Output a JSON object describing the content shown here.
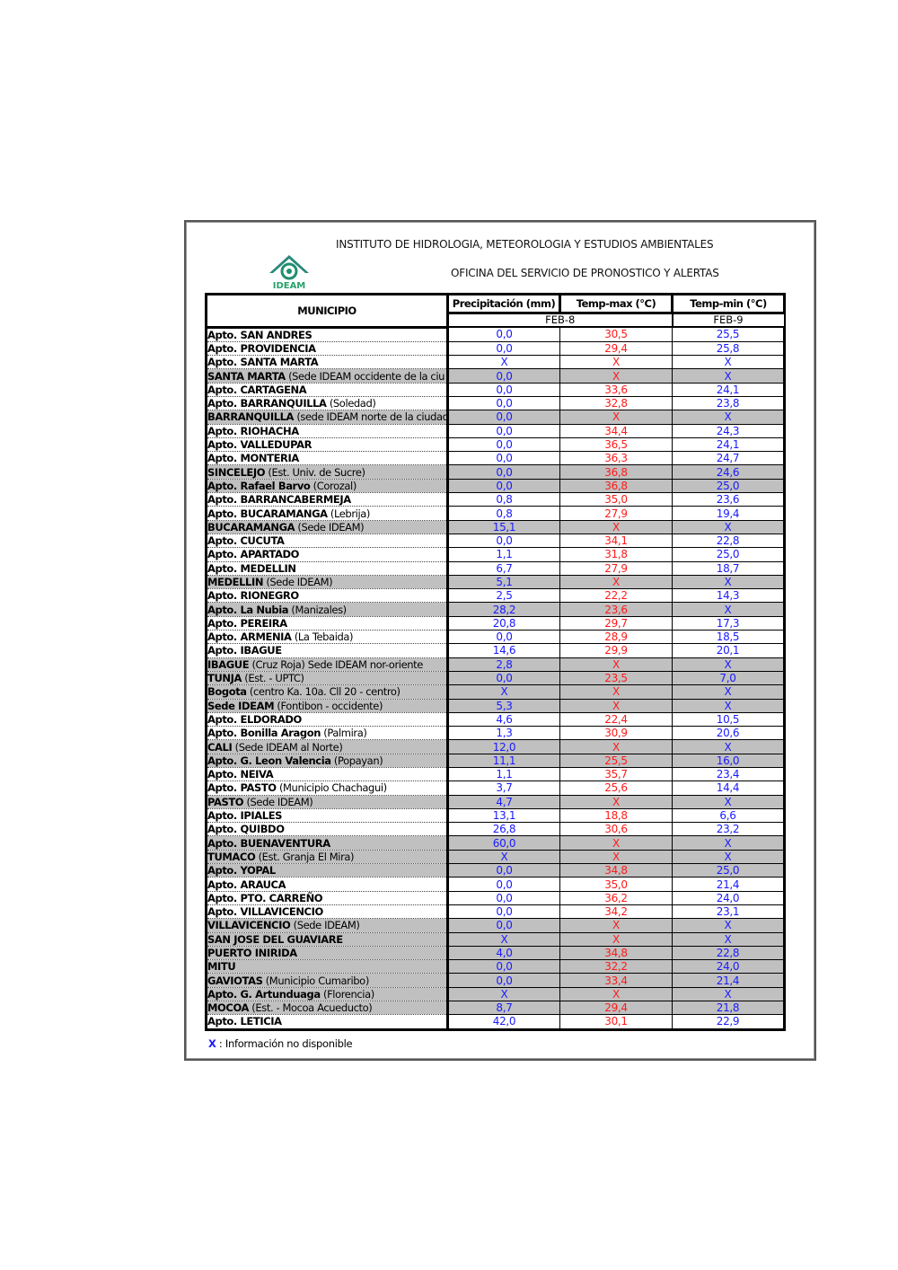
{
  "header": {
    "institute": "INSTITUTO DE HIDROLOGIA, METEOROLOGIA Y ESTUDIOS AMBIENTALES",
    "office": "OFICINA DEL SERVICIO DE PRONOSTICO Y ALERTAS",
    "logo_text": "IDEAM"
  },
  "table": {
    "col_municipio": "MUNICIPIO",
    "col_precip": "Precipitación (mm)",
    "col_tmax": "Temp-max (°C)",
    "col_tmin": "Temp-min (°C)",
    "date_precip_tmax": "FEB-8",
    "date_tmin": "FEB-9",
    "colors": {
      "precip": "#1a1aff",
      "tmax": "#ff1a1a",
      "tmin": "#1a1aff",
      "shaded": "#c0c0c0"
    },
    "rows": [
      {
        "b": "Apto. SAN ANDRES",
        "r": "",
        "p": "0,0",
        "x": "30,5",
        "n": "25,5",
        "g": false
      },
      {
        "b": "Apto. PROVIDENCIA",
        "r": "",
        "p": "0,0",
        "x": "29,4",
        "n": "25,8",
        "g": false
      },
      {
        "b": "Apto. SANTA MARTA",
        "r": "",
        "p": "X",
        "x": "X",
        "n": "X",
        "g": false
      },
      {
        "b": "SANTA MARTA",
        "r": " (Sede IDEAM occidente de la ciu",
        "p": "0,0",
        "x": "X",
        "n": "X",
        "g": true
      },
      {
        "b": "Apto. CARTAGENA",
        "r": "",
        "p": "0,0",
        "x": "33,6",
        "n": "24,1",
        "g": false
      },
      {
        "b": "Apto. BARRANQUILLA",
        "r": " (Soledad)",
        "p": "0,0",
        "x": "32,8",
        "n": "23,8",
        "g": false
      },
      {
        "b": "BARRANQUILLA",
        "r": " (sede IDEAM norte de la ciudad",
        "p": "0,0",
        "x": "X",
        "n": "X",
        "g": true
      },
      {
        "b": "Apto. RIOHACHA",
        "r": "",
        "p": "0,0",
        "x": "34,4",
        "n": "24,3",
        "g": false
      },
      {
        "b": "Apto. VALLEDUPAR",
        "r": "",
        "p": "0,0",
        "x": "36,5",
        "n": "24,1",
        "g": false
      },
      {
        "b": "Apto. MONTERIA",
        "r": "",
        "p": "0,0",
        "x": "36,3",
        "n": "24,7",
        "g": false
      },
      {
        "b": "SINCELEJO",
        "r": " (Est. Univ. de Sucre)",
        "p": "0,0",
        "x": "36,8",
        "n": "24,6",
        "g": true
      },
      {
        "b": "Apto. Rafael Barvo",
        "r": " (Corozal)",
        "p": "0,0",
        "x": "36,8",
        "n": "25,0",
        "g": true
      },
      {
        "b": "Apto. BARRANCABERMEJA",
        "r": "",
        "p": "0,8",
        "x": "35,0",
        "n": "23,6",
        "g": false
      },
      {
        "b": "Apto. BUCARAMANGA",
        "r": " (Lebrija)",
        "p": "0,8",
        "x": "27,9",
        "n": "19,4",
        "g": false
      },
      {
        "b": "BUCARAMANGA",
        "r": " (Sede IDEAM)",
        "p": "15,1",
        "x": "X",
        "n": "X",
        "g": true
      },
      {
        "b": "Apto. CUCUTA",
        "r": "",
        "p": "0,0",
        "x": "34,1",
        "n": "22,8",
        "g": false
      },
      {
        "b": "Apto. APARTADO",
        "r": "",
        "p": "1,1",
        "x": "31,8",
        "n": "25,0",
        "g": false
      },
      {
        "b": "Apto. MEDELLIN",
        "r": "",
        "p": "6,7",
        "x": "27,9",
        "n": "18,7",
        "g": false
      },
      {
        "b": "MEDELLIN",
        "r": " (Sede IDEAM)",
        "p": "5,1",
        "x": "X",
        "n": "X",
        "g": true
      },
      {
        "b": "Apto. RIONEGRO",
        "r": "",
        "p": "2,5",
        "x": "22,2",
        "n": "14,3",
        "g": false
      },
      {
        "b": "Apto. La Nubia",
        "r": " (Manizales)",
        "p": "28,2",
        "x": "23,6",
        "n": "X",
        "g": true
      },
      {
        "b": "Apto. PEREIRA",
        "r": "",
        "p": "20,8",
        "x": "29,7",
        "n": "17,3",
        "g": false
      },
      {
        "b": "Apto. ARMENIA",
        "r": " (La Tebaida)",
        "p": "0,0",
        "x": "28,9",
        "n": "18,5",
        "g": false
      },
      {
        "b": "Apto. IBAGUE",
        "r": "",
        "p": "14,6",
        "x": "29,9",
        "n": "20,1",
        "g": false
      },
      {
        "b": "IBAGUE",
        "r": " (Cruz Roja) Sede IDEAM  nor-oriente",
        "p": "2,8",
        "x": "X",
        "n": "X",
        "g": true
      },
      {
        "b": "TUNJA",
        "r": " (Est. - UPTC)",
        "p": "0,0",
        "x": "23,5",
        "n": "7,0",
        "g": true
      },
      {
        "b": "Bogota",
        "r": " (centro Ka. 10a. Cll 20 - centro)",
        "p": "X",
        "x": "X",
        "n": "X",
        "g": true
      },
      {
        "b": "Sede IDEAM",
        "r": " (Fontibon - occidente)",
        "p": "5,3",
        "x": "X",
        "n": "X",
        "g": true
      },
      {
        "b": "Apto. ELDORADO",
        "r": "",
        "p": "4,6",
        "x": "22,4",
        "n": "10,5",
        "g": false
      },
      {
        "b": "Apto. Bonilla Aragon",
        "r": " (Palmira)",
        "p": "1,3",
        "x": "30,9",
        "n": "20,6",
        "g": false
      },
      {
        "b": "CALI",
        "r": " (Sede IDEAM al Norte)",
        "p": "12,0",
        "x": "X",
        "n": "X",
        "g": true
      },
      {
        "b": "Apto. G. Leon Valencia",
        "r": " (Popayan)",
        "p": "11,1",
        "x": "25,5",
        "n": "16,0",
        "g": true
      },
      {
        "b": "Apto. NEIVA",
        "r": "",
        "p": "1,1",
        "x": "35,7",
        "n": "23,4",
        "g": false
      },
      {
        "b": "Apto. PASTO",
        "r": " (Municipio Chachagui)",
        "p": "3,7",
        "x": "25,6",
        "n": "14,4",
        "g": false
      },
      {
        "b": "PASTO",
        "r": " (Sede IDEAM)",
        "p": "4,7",
        "x": "X",
        "n": "X",
        "g": true
      },
      {
        "b": "Apto. IPIALES",
        "r": "",
        "p": "13,1",
        "x": "18,8",
        "n": "6,6",
        "g": false
      },
      {
        "b": "Apto. QUIBDO",
        "r": "",
        "p": "26,8",
        "x": "30,6",
        "n": "23,2",
        "g": false
      },
      {
        "b": "Apto. BUENAVENTURA",
        "r": "",
        "p": "60,0",
        "x": "X",
        "n": "X",
        "g": true
      },
      {
        "b": "TUMACO",
        "r": " (Est. Granja El Mira)",
        "p": "X",
        "x": "X",
        "n": "X",
        "g": true
      },
      {
        "b": "Apto. YOPAL",
        "r": "",
        "p": "0,0",
        "x": "34,8",
        "n": "25,0",
        "g": true
      },
      {
        "b": "Apto. ARAUCA",
        "r": "",
        "p": "0,0",
        "x": "35,0",
        "n": "21,4",
        "g": false
      },
      {
        "b": "Apto. PTO.  CARREÑO",
        "r": "",
        "p": "0,0",
        "x": "36,2",
        "n": "24,0",
        "g": false
      },
      {
        "b": "Apto. VILLAVICENCIO",
        "r": "",
        "p": "0,0",
        "x": "34,2",
        "n": "23,1",
        "g": false
      },
      {
        "b": "VILLAVICENCIO",
        "r": " (Sede IDEAM)",
        "p": "0,0",
        "x": "X",
        "n": "X",
        "g": true
      },
      {
        "b": "SAN JOSE DEL GUAVIARE",
        "r": "",
        "p": "X",
        "x": "X",
        "n": "X",
        "g": true
      },
      {
        "b": "PUERTO INIRIDA",
        "r": "",
        "p": "4,0",
        "x": "34,8",
        "n": "22,8",
        "g": true
      },
      {
        "b": "MITU",
        "r": "",
        "p": "0,0",
        "x": "32,2",
        "n": "24,0",
        "g": true
      },
      {
        "b": "GAVIOTAS",
        "r": " (Municipio Cumaribo)",
        "p": "0,0",
        "x": "33,4",
        "n": "21,4",
        "g": true
      },
      {
        "b": "Apto. G. Artunduaga",
        "r": " (Florencia)",
        "p": "X",
        "x": "X",
        "n": "X",
        "g": true
      },
      {
        "b": "MOCOA",
        "r": " (Est. - Mocoa Acueducto)",
        "p": "8,7",
        "x": "29,4",
        "n": "21,8",
        "g": true
      },
      {
        "b": "Apto. LETICIA",
        "r": "",
        "p": "42,0",
        "x": "30,1",
        "n": "22,9",
        "g": false
      }
    ]
  },
  "legend": {
    "symbol": "X",
    "text": " : Información no disponible"
  }
}
